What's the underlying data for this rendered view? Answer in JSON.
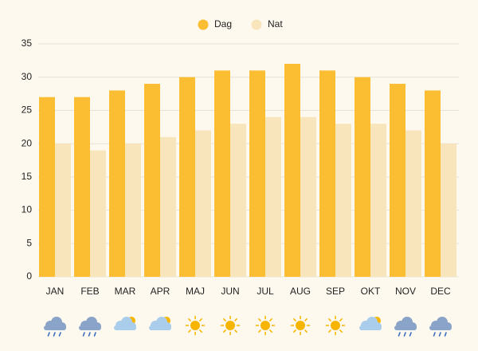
{
  "chart_data": {
    "type": "bar",
    "categories": [
      "JAN",
      "FEB",
      "MAR",
      "APR",
      "MAJ",
      "JUN",
      "JUL",
      "AUG",
      "SEP",
      "OKT",
      "NOV",
      "DEC"
    ],
    "series": [
      {
        "name": "Dag",
        "color": "#fbbd31",
        "values": [
          27,
          27,
          28,
          29,
          30,
          31,
          31,
          32,
          31,
          30,
          29,
          28
        ]
      },
      {
        "name": "Nat",
        "color": "#f9e5bb",
        "values": [
          20,
          19,
          20,
          21,
          22,
          23,
          24,
          24,
          23,
          23,
          22,
          20
        ]
      }
    ],
    "ylim": [
      0,
      35
    ],
    "yticks": [
      0,
      5,
      10,
      15,
      20,
      25,
      30,
      35
    ],
    "grid": true,
    "legend": "top"
  }
}
